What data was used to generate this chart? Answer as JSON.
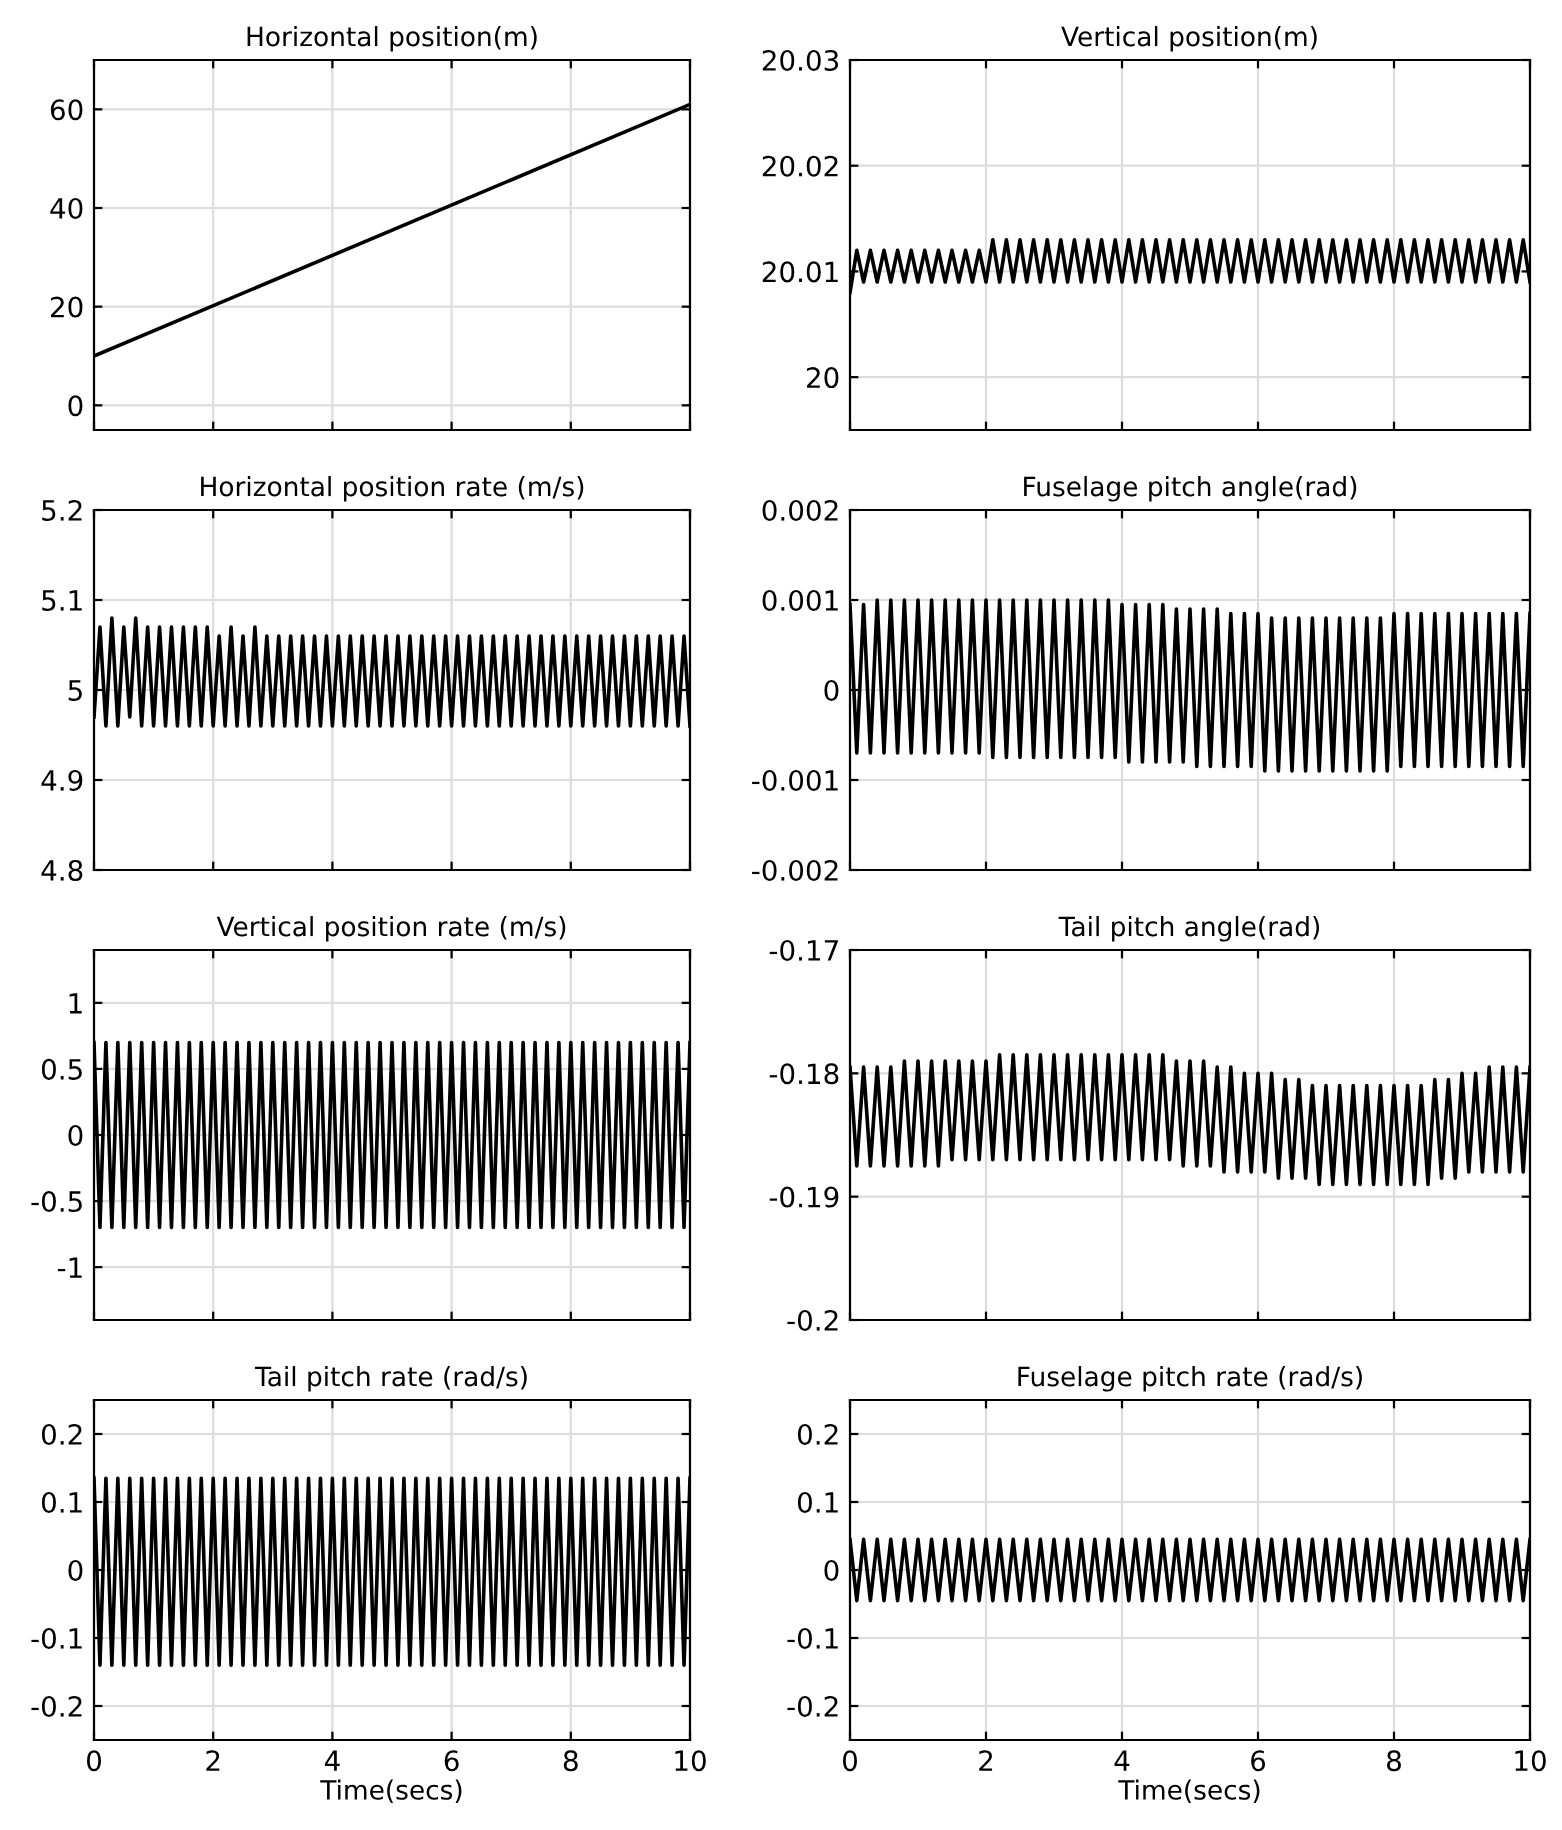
{
  "chart_data": [
    {
      "type": "line",
      "title": "Horizontal position(m)",
      "xlim": [
        0,
        10
      ],
      "xticks": [
        0,
        2,
        4,
        6,
        8,
        10
      ],
      "ylim": [
        -5,
        70
      ],
      "yticks": [
        0,
        20,
        40,
        60
      ],
      "grid": true,
      "tick_labels": "y",
      "series": [
        {
          "color": "#000000",
          "x": [
            0,
            10
          ],
          "values": [
            10,
            61
          ]
        }
      ]
    },
    {
      "type": "line",
      "title": "Vertical position(m)",
      "xlim": [
        0,
        10
      ],
      "xticks": [
        0,
        2,
        4,
        6,
        8,
        10
      ],
      "ylim": [
        19.995,
        20.03
      ],
      "yticks": [
        20,
        20.01,
        20.02,
        20.03
      ],
      "grid": true,
      "tick_labels": "y",
      "x": [
        0,
        0.1,
        0.2,
        0.3,
        0.4,
        0.5,
        0.6,
        0.7,
        0.8,
        0.9,
        1,
        1.1,
        1.2,
        1.3,
        1.4,
        1.5,
        1.6,
        1.7,
        1.8,
        1.9,
        2,
        2.1,
        2.2,
        2.3,
        2.4,
        2.5,
        2.6,
        2.7,
        2.8,
        2.9,
        3,
        3.1,
        3.2,
        3.3,
        3.4,
        3.5,
        3.6,
        3.7,
        3.8,
        3.9,
        4,
        4.1,
        4.2,
        4.3,
        4.4,
        4.5,
        4.6,
        4.7,
        4.8,
        4.9,
        5,
        5.1,
        5.2,
        5.3,
        5.4,
        5.5,
        5.6,
        5.7,
        5.8,
        5.9,
        6,
        6.1,
        6.2,
        6.3,
        6.4,
        6.5,
        6.6,
        6.7,
        6.8,
        6.9,
        7,
        7.1,
        7.2,
        7.3,
        7.4,
        7.5,
        7.6,
        7.7,
        7.8,
        7.9,
        8,
        8.1,
        8.2,
        8.3,
        8.4,
        8.5,
        8.6,
        8.7,
        8.8,
        8.9,
        9,
        9.1,
        9.2,
        9.3,
        9.4,
        9.5,
        9.6,
        9.7,
        9.8,
        9.9,
        10
      ],
      "series": [
        {
          "color": "#000000",
          "values": [
            20.008,
            20.012,
            20.009,
            20.012,
            20.009,
            20.012,
            20.009,
            20.012,
            20.009,
            20.012,
            20.009,
            20.012,
            20.009,
            20.012,
            20.009,
            20.012,
            20.009,
            20.012,
            20.009,
            20.012,
            20.009,
            20.013,
            20.009,
            20.013,
            20.009,
            20.013,
            20.009,
            20.013,
            20.009,
            20.013,
            20.009,
            20.013,
            20.009,
            20.013,
            20.009,
            20.013,
            20.009,
            20.013,
            20.009,
            20.013,
            20.009,
            20.013,
            20.009,
            20.013,
            20.009,
            20.013,
            20.009,
            20.013,
            20.009,
            20.013,
            20.009,
            20.013,
            20.009,
            20.013,
            20.009,
            20.013,
            20.009,
            20.013,
            20.009,
            20.013,
            20.009,
            20.013,
            20.009,
            20.013,
            20.009,
            20.013,
            20.009,
            20.013,
            20.009,
            20.013,
            20.009,
            20.013,
            20.009,
            20.013,
            20.009,
            20.013,
            20.009,
            20.013,
            20.009,
            20.013,
            20.009,
            20.013,
            20.009,
            20.013,
            20.009,
            20.013,
            20.009,
            20.013,
            20.009,
            20.013,
            20.009,
            20.013,
            20.009,
            20.013,
            20.009,
            20.013,
            20.009,
            20.013,
            20.009,
            20.013,
            20.009
          ]
        }
      ]
    },
    {
      "type": "line",
      "title": "Horizontal position rate (m/s)",
      "xlim": [
        0,
        10
      ],
      "xticks": [
        0,
        2,
        4,
        6,
        8,
        10
      ],
      "ylim": [
        4.8,
        5.2
      ],
      "yticks": [
        4.8,
        4.9,
        5,
        5.1,
        5.2
      ],
      "grid": true,
      "tick_labels": "y",
      "x": [
        0,
        0.1,
        0.2,
        0.3,
        0.4,
        0.5,
        0.6,
        0.7,
        0.8,
        0.9,
        1,
        1.1,
        1.2,
        1.3,
        1.4,
        1.5,
        1.6,
        1.7,
        1.8,
        1.9,
        2,
        2.1,
        2.2,
        2.3,
        2.4,
        2.5,
        2.6,
        2.7,
        2.8,
        2.9,
        3,
        3.1,
        3.2,
        3.3,
        3.4,
        3.5,
        3.6,
        3.7,
        3.8,
        3.9,
        4,
        4.1,
        4.2,
        4.3,
        4.4,
        4.5,
        4.6,
        4.7,
        4.8,
        4.9,
        5,
        5.1,
        5.2,
        5.3,
        5.4,
        5.5,
        5.6,
        5.7,
        5.8,
        5.9,
        6,
        6.1,
        6.2,
        6.3,
        6.4,
        6.5,
        6.6,
        6.7,
        6.8,
        6.9,
        7,
        7.1,
        7.2,
        7.3,
        7.4,
        7.5,
        7.6,
        7.7,
        7.8,
        7.9,
        8,
        8.1,
        8.2,
        8.3,
        8.4,
        8.5,
        8.6,
        8.7,
        8.8,
        8.9,
        9,
        9.1,
        9.2,
        9.3,
        9.4,
        9.5,
        9.6,
        9.7,
        9.8,
        9.9,
        10
      ],
      "series": [
        {
          "color": "#000000",
          "values": [
            4.97,
            5.07,
            4.96,
            5.08,
            4.96,
            5.07,
            4.97,
            5.08,
            4.96,
            5.07,
            4.96,
            5.07,
            4.96,
            5.07,
            4.96,
            5.07,
            4.96,
            5.07,
            4.96,
            5.07,
            4.96,
            5.06,
            4.96,
            5.07,
            4.96,
            5.06,
            4.96,
            5.07,
            4.96,
            5.06,
            4.96,
            5.06,
            4.96,
            5.06,
            4.96,
            5.06,
            4.96,
            5.06,
            4.96,
            5.06,
            4.96,
            5.06,
            4.96,
            5.06,
            4.96,
            5.06,
            4.96,
            5.06,
            4.96,
            5.06,
            4.96,
            5.06,
            4.96,
            5.06,
            4.96,
            5.06,
            4.96,
            5.06,
            4.96,
            5.06,
            4.96,
            5.06,
            4.96,
            5.06,
            4.96,
            5.06,
            4.96,
            5.06,
            4.96,
            5.06,
            4.96,
            5.06,
            4.96,
            5.06,
            4.96,
            5.06,
            4.96,
            5.06,
            4.96,
            5.06,
            4.96,
            5.06,
            4.96,
            5.06,
            4.96,
            5.06,
            4.96,
            5.06,
            4.96,
            5.06,
            4.96,
            5.06,
            4.96,
            5.06,
            4.96,
            5.06,
            4.96,
            5.06,
            4.96,
            5.06,
            4.96
          ]
        }
      ]
    },
    {
      "type": "line",
      "title": "Fuselage pitch angle(rad)",
      "xlim": [
        0,
        10
      ],
      "xticks": [
        0,
        2,
        4,
        6,
        8,
        10
      ],
      "ylim": [
        -0.002,
        0.002
      ],
      "yticks": [
        -0.002,
        -0.001,
        0,
        0.001,
        0.002
      ],
      "grid": true,
      "tick_labels": "y",
      "x": [
        0,
        0.1,
        0.2,
        0.3,
        0.4,
        0.5,
        0.6,
        0.7,
        0.8,
        0.9,
        1,
        1.1,
        1.2,
        1.3,
        1.4,
        1.5,
        1.6,
        1.7,
        1.8,
        1.9,
        2,
        2.1,
        2.2,
        2.3,
        2.4,
        2.5,
        2.6,
        2.7,
        2.8,
        2.9,
        3,
        3.1,
        3.2,
        3.3,
        3.4,
        3.5,
        3.6,
        3.7,
        3.8,
        3.9,
        4,
        4.1,
        4.2,
        4.3,
        4.4,
        4.5,
        4.6,
        4.7,
        4.8,
        4.9,
        5,
        5.1,
        5.2,
        5.3,
        5.4,
        5.5,
        5.6,
        5.7,
        5.8,
        5.9,
        6,
        6.1,
        6.2,
        6.3,
        6.4,
        6.5,
        6.6,
        6.7,
        6.8,
        6.9,
        7,
        7.1,
        7.2,
        7.3,
        7.4,
        7.5,
        7.6,
        7.7,
        7.8,
        7.9,
        8,
        8.1,
        8.2,
        8.3,
        8.4,
        8.5,
        8.6,
        8.7,
        8.8,
        8.9,
        9,
        9.1,
        9.2,
        9.3,
        9.4,
        9.5,
        9.6,
        9.7,
        9.8,
        9.9,
        10
      ],
      "series": [
        {
          "color": "#000000",
          "values": [
            0.00095,
            -0.0007,
            0.00095,
            -0.0007,
            0.001,
            -0.0007,
            0.001,
            -0.0007,
            0.001,
            -0.0007,
            0.001,
            -0.0007,
            0.001,
            -0.0007,
            0.001,
            -0.0007,
            0.001,
            -0.0007,
            0.001,
            -0.0007,
            0.001,
            -0.00075,
            0.001,
            -0.00075,
            0.001,
            -0.00075,
            0.001,
            -0.00075,
            0.001,
            -0.00075,
            0.001,
            -0.00075,
            0.001,
            -0.00075,
            0.001,
            -0.00075,
            0.001,
            -0.00075,
            0.001,
            -0.00075,
            0.00095,
            -0.0008,
            0.00095,
            -0.0008,
            0.00095,
            -0.0008,
            0.00095,
            -0.0008,
            0.0009,
            -0.0008,
            0.0009,
            -0.00085,
            0.0009,
            -0.00085,
            0.0009,
            -0.00085,
            0.00085,
            -0.00085,
            0.00085,
            -0.00085,
            0.00085,
            -0.0009,
            0.0008,
            -0.0009,
            0.0008,
            -0.0009,
            0.0008,
            -0.0009,
            0.0008,
            -0.0009,
            0.0008,
            -0.0009,
            0.0008,
            -0.0009,
            0.0008,
            -0.0009,
            0.0008,
            -0.0009,
            0.0008,
            -0.0009,
            0.00085,
            -0.00085,
            0.00085,
            -0.00085,
            0.00085,
            -0.00085,
            0.00085,
            -0.00085,
            0.00085,
            -0.00085,
            0.00085,
            -0.00085,
            0.00085,
            -0.00085,
            0.00085,
            -0.00085,
            0.00085,
            -0.00085,
            0.00085,
            -0.00085,
            0.00085
          ]
        }
      ]
    },
    {
      "type": "line",
      "title": "Vertical position rate (m/s)",
      "xlim": [
        0,
        10
      ],
      "xticks": [
        0,
        2,
        4,
        6,
        8,
        10
      ],
      "ylim": [
        -1.4,
        1.4
      ],
      "yticks": [
        -1,
        -0.5,
        0,
        0.5,
        1
      ],
      "grid": true,
      "tick_labels": "y",
      "x": [
        0,
        0.1,
        0.2,
        0.3,
        0.4,
        0.5,
        0.6,
        0.7,
        0.8,
        0.9,
        1,
        1.1,
        1.2,
        1.3,
        1.4,
        1.5,
        1.6,
        1.7,
        1.8,
        1.9,
        2,
        2.1,
        2.2,
        2.3,
        2.4,
        2.5,
        2.6,
        2.7,
        2.8,
        2.9,
        3,
        3.1,
        3.2,
        3.3,
        3.4,
        3.5,
        3.6,
        3.7,
        3.8,
        3.9,
        4,
        4.1,
        4.2,
        4.3,
        4.4,
        4.5,
        4.6,
        4.7,
        4.8,
        4.9,
        5,
        5.1,
        5.2,
        5.3,
        5.4,
        5.5,
        5.6,
        5.7,
        5.8,
        5.9,
        6,
        6.1,
        6.2,
        6.3,
        6.4,
        6.5,
        6.6,
        6.7,
        6.8,
        6.9,
        7,
        7.1,
        7.2,
        7.3,
        7.4,
        7.5,
        7.6,
        7.7,
        7.8,
        7.9,
        8,
        8.1,
        8.2,
        8.3,
        8.4,
        8.5,
        8.6,
        8.7,
        8.8,
        8.9,
        9,
        9.1,
        9.2,
        9.3,
        9.4,
        9.5,
        9.6,
        9.7,
        9.8,
        9.9,
        10
      ],
      "series": [
        {
          "color": "#000000",
          "values": [
            0.7,
            -0.7,
            0.7,
            -0.7,
            0.7,
            -0.7,
            0.7,
            -0.7,
            0.7,
            -0.7,
            0.7,
            -0.7,
            0.7,
            -0.7,
            0.7,
            -0.7,
            0.7,
            -0.7,
            0.7,
            -0.7,
            0.7,
            -0.7,
            0.7,
            -0.7,
            0.7,
            -0.7,
            0.7,
            -0.7,
            0.7,
            -0.7,
            0.7,
            -0.7,
            0.7,
            -0.7,
            0.7,
            -0.7,
            0.7,
            -0.7,
            0.7,
            -0.7,
            0.7,
            -0.7,
            0.7,
            -0.7,
            0.7,
            -0.7,
            0.7,
            -0.7,
            0.7,
            -0.7,
            0.7,
            -0.7,
            0.7,
            -0.7,
            0.7,
            -0.7,
            0.7,
            -0.7,
            0.7,
            -0.7,
            0.7,
            -0.7,
            0.7,
            -0.7,
            0.7,
            -0.7,
            0.7,
            -0.7,
            0.7,
            -0.7,
            0.7,
            -0.7,
            0.7,
            -0.7,
            0.7,
            -0.7,
            0.7,
            -0.7,
            0.7,
            -0.7,
            0.7,
            -0.7,
            0.7,
            -0.7,
            0.7,
            -0.7,
            0.7,
            -0.7,
            0.7,
            -0.7,
            0.7,
            -0.7,
            0.7,
            -0.7,
            0.7,
            -0.7,
            0.7,
            -0.7,
            0.7,
            -0.7,
            0.7
          ]
        }
      ]
    },
    {
      "type": "line",
      "title": "Tail pitch angle(rad)",
      "xlim": [
        0,
        10
      ],
      "xticks": [
        0,
        2,
        4,
        6,
        8,
        10
      ],
      "ylim": [
        -0.2,
        -0.17
      ],
      "yticks": [
        -0.2,
        -0.19,
        -0.18,
        -0.17
      ],
      "grid": true,
      "tick_labels": "y",
      "x": [
        0,
        0.1,
        0.2,
        0.3,
        0.4,
        0.5,
        0.6,
        0.7,
        0.8,
        0.9,
        1,
        1.1,
        1.2,
        1.3,
        1.4,
        1.5,
        1.6,
        1.7,
        1.8,
        1.9,
        2,
        2.1,
        2.2,
        2.3,
        2.4,
        2.5,
        2.6,
        2.7,
        2.8,
        2.9,
        3,
        3.1,
        3.2,
        3.3,
        3.4,
        3.5,
        3.6,
        3.7,
        3.8,
        3.9,
        4,
        4.1,
        4.2,
        4.3,
        4.4,
        4.5,
        4.6,
        4.7,
        4.8,
        4.9,
        5,
        5.1,
        5.2,
        5.3,
        5.4,
        5.5,
        5.6,
        5.7,
        5.8,
        5.9,
        6,
        6.1,
        6.2,
        6.3,
        6.4,
        6.5,
        6.6,
        6.7,
        6.8,
        6.9,
        7,
        7.1,
        7.2,
        7.3,
        7.4,
        7.5,
        7.6,
        7.7,
        7.8,
        7.9,
        8,
        8.1,
        8.2,
        8.3,
        8.4,
        8.5,
        8.6,
        8.7,
        8.8,
        8.9,
        9,
        9.1,
        9.2,
        9.3,
        9.4,
        9.5,
        9.6,
        9.7,
        9.8,
        9.9,
        10
      ],
      "series": [
        {
          "color": "#000000",
          "values": [
            -0.1795,
            -0.1875,
            -0.1795,
            -0.1875,
            -0.1795,
            -0.1875,
            -0.1795,
            -0.1875,
            -0.179,
            -0.1875,
            -0.179,
            -0.1875,
            -0.179,
            -0.1875,
            -0.179,
            -0.187,
            -0.179,
            -0.187,
            -0.179,
            -0.187,
            -0.179,
            -0.187,
            -0.1785,
            -0.187,
            -0.1785,
            -0.187,
            -0.1785,
            -0.187,
            -0.1785,
            -0.187,
            -0.1785,
            -0.187,
            -0.1785,
            -0.187,
            -0.1785,
            -0.187,
            -0.1785,
            -0.187,
            -0.1785,
            -0.187,
            -0.1785,
            -0.187,
            -0.1785,
            -0.187,
            -0.1785,
            -0.187,
            -0.1785,
            -0.187,
            -0.179,
            -0.1875,
            -0.179,
            -0.1875,
            -0.179,
            -0.1875,
            -0.1795,
            -0.188,
            -0.1795,
            -0.188,
            -0.18,
            -0.188,
            -0.18,
            -0.188,
            -0.18,
            -0.1885,
            -0.1805,
            -0.1885,
            -0.1805,
            -0.1885,
            -0.181,
            -0.189,
            -0.181,
            -0.189,
            -0.181,
            -0.189,
            -0.181,
            -0.189,
            -0.181,
            -0.189,
            -0.181,
            -0.189,
            -0.181,
            -0.189,
            -0.181,
            -0.189,
            -0.181,
            -0.189,
            -0.1805,
            -0.1885,
            -0.1805,
            -0.1885,
            -0.18,
            -0.188,
            -0.18,
            -0.188,
            -0.1795,
            -0.188,
            -0.1795,
            -0.188,
            -0.1795,
            -0.188,
            -0.1795
          ]
        }
      ]
    },
    {
      "type": "line",
      "title": "Tail pitch rate (rad/s)",
      "xlabel": "Time(secs)",
      "xlim": [
        0,
        10
      ],
      "xticks": [
        0,
        2,
        4,
        6,
        8,
        10
      ],
      "ylim": [
        -0.25,
        0.25
      ],
      "yticks": [
        -0.2,
        -0.1,
        0,
        0.1,
        0.2
      ],
      "grid": true,
      "x": [
        0,
        0.1,
        0.2,
        0.3,
        0.4,
        0.5,
        0.6,
        0.7,
        0.8,
        0.9,
        1,
        1.1,
        1.2,
        1.3,
        1.4,
        1.5,
        1.6,
        1.7,
        1.8,
        1.9,
        2,
        2.1,
        2.2,
        2.3,
        2.4,
        2.5,
        2.6,
        2.7,
        2.8,
        2.9,
        3,
        3.1,
        3.2,
        3.3,
        3.4,
        3.5,
        3.6,
        3.7,
        3.8,
        3.9,
        4,
        4.1,
        4.2,
        4.3,
        4.4,
        4.5,
        4.6,
        4.7,
        4.8,
        4.9,
        5,
        5.1,
        5.2,
        5.3,
        5.4,
        5.5,
        5.6,
        5.7,
        5.8,
        5.9,
        6,
        6.1,
        6.2,
        6.3,
        6.4,
        6.5,
        6.6,
        6.7,
        6.8,
        6.9,
        7,
        7.1,
        7.2,
        7.3,
        7.4,
        7.5,
        7.6,
        7.7,
        7.8,
        7.9,
        8,
        8.1,
        8.2,
        8.3,
        8.4,
        8.5,
        8.6,
        8.7,
        8.8,
        8.9,
        9,
        9.1,
        9.2,
        9.3,
        9.4,
        9.5,
        9.6,
        9.7,
        9.8,
        9.9,
        10
      ],
      "series": [
        {
          "color": "#000000",
          "values": [
            0.135,
            -0.14,
            0.135,
            -0.14,
            0.135,
            -0.14,
            0.135,
            -0.14,
            0.135,
            -0.14,
            0.135,
            -0.14,
            0.135,
            -0.14,
            0.135,
            -0.14,
            0.135,
            -0.14,
            0.135,
            -0.14,
            0.135,
            -0.14,
            0.135,
            -0.14,
            0.135,
            -0.14,
            0.135,
            -0.14,
            0.135,
            -0.14,
            0.135,
            -0.14,
            0.135,
            -0.14,
            0.135,
            -0.14,
            0.135,
            -0.14,
            0.135,
            -0.14,
            0.135,
            -0.14,
            0.135,
            -0.14,
            0.135,
            -0.14,
            0.135,
            -0.14,
            0.135,
            -0.14,
            0.135,
            -0.14,
            0.135,
            -0.14,
            0.135,
            -0.14,
            0.135,
            -0.14,
            0.135,
            -0.14,
            0.135,
            -0.14,
            0.135,
            -0.14,
            0.135,
            -0.14,
            0.135,
            -0.14,
            0.135,
            -0.14,
            0.135,
            -0.14,
            0.135,
            -0.14,
            0.135,
            -0.14,
            0.135,
            -0.14,
            0.135,
            -0.14,
            0.135,
            -0.14,
            0.135,
            -0.14,
            0.135,
            -0.14,
            0.135,
            -0.14,
            0.135,
            -0.14,
            0.135,
            -0.14,
            0.135,
            -0.14,
            0.135,
            -0.14,
            0.135,
            -0.14,
            0.135,
            -0.14,
            0.135
          ]
        }
      ]
    },
    {
      "type": "line",
      "title": "Fuselage pitch rate (rad/s)",
      "xlabel": "Time(secs)",
      "xlim": [
        0,
        10
      ],
      "xticks": [
        0,
        2,
        4,
        6,
        8,
        10
      ],
      "ylim": [
        -0.25,
        0.25
      ],
      "yticks": [
        -0.2,
        -0.1,
        0,
        0.1,
        0.2
      ],
      "grid": true,
      "x": [
        0,
        0.1,
        0.2,
        0.3,
        0.4,
        0.5,
        0.6,
        0.7,
        0.8,
        0.9,
        1,
        1.1,
        1.2,
        1.3,
        1.4,
        1.5,
        1.6,
        1.7,
        1.8,
        1.9,
        2,
        2.1,
        2.2,
        2.3,
        2.4,
        2.5,
        2.6,
        2.7,
        2.8,
        2.9,
        3,
        3.1,
        3.2,
        3.3,
        3.4,
        3.5,
        3.6,
        3.7,
        3.8,
        3.9,
        4,
        4.1,
        4.2,
        4.3,
        4.4,
        4.5,
        4.6,
        4.7,
        4.8,
        4.9,
        5,
        5.1,
        5.2,
        5.3,
        5.4,
        5.5,
        5.6,
        5.7,
        5.8,
        5.9,
        6,
        6.1,
        6.2,
        6.3,
        6.4,
        6.5,
        6.6,
        6.7,
        6.8,
        6.9,
        7,
        7.1,
        7.2,
        7.3,
        7.4,
        7.5,
        7.6,
        7.7,
        7.8,
        7.9,
        8,
        8.1,
        8.2,
        8.3,
        8.4,
        8.5,
        8.6,
        8.7,
        8.8,
        8.9,
        9,
        9.1,
        9.2,
        9.3,
        9.4,
        9.5,
        9.6,
        9.7,
        9.8,
        9.9,
        10
      ],
      "series": [
        {
          "color": "#000000",
          "values": [
            0.045,
            -0.045,
            0.045,
            -0.045,
            0.045,
            -0.045,
            0.045,
            -0.045,
            0.045,
            -0.045,
            0.045,
            -0.045,
            0.045,
            -0.045,
            0.045,
            -0.045,
            0.045,
            -0.045,
            0.045,
            -0.045,
            0.045,
            -0.045,
            0.045,
            -0.045,
            0.045,
            -0.045,
            0.045,
            -0.045,
            0.045,
            -0.045,
            0.045,
            -0.045,
            0.045,
            -0.045,
            0.045,
            -0.045,
            0.045,
            -0.045,
            0.045,
            -0.045,
            0.045,
            -0.045,
            0.045,
            -0.045,
            0.045,
            -0.045,
            0.045,
            -0.045,
            0.045,
            -0.045,
            0.045,
            -0.045,
            0.045,
            -0.045,
            0.045,
            -0.045,
            0.045,
            -0.045,
            0.045,
            -0.045,
            0.045,
            -0.045,
            0.045,
            -0.045,
            0.045,
            -0.045,
            0.045,
            -0.045,
            0.045,
            -0.045,
            0.045,
            -0.045,
            0.045,
            -0.045,
            0.045,
            -0.045,
            0.045,
            -0.045,
            0.045,
            -0.045,
            0.045,
            -0.045,
            0.045,
            -0.045,
            0.045,
            -0.045,
            0.045,
            -0.045,
            0.045,
            -0.045,
            0.045,
            -0.045,
            0.045,
            -0.045,
            0.045,
            -0.045,
            0.045,
            -0.045,
            0.045,
            -0.045,
            0.045
          ]
        }
      ]
    }
  ]
}
